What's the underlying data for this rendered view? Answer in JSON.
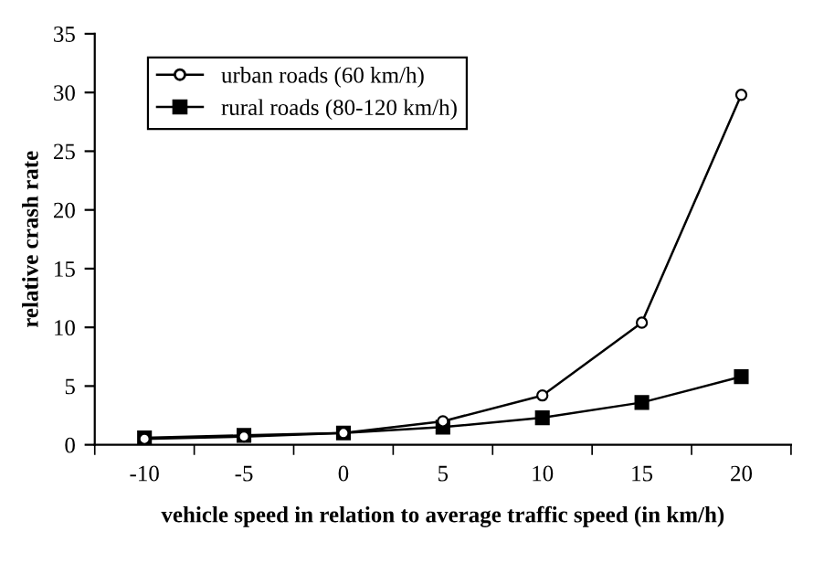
{
  "chart_data": {
    "type": "line",
    "xlabel": "vehicle speed in relation to average traffic speed (in km/h)",
    "ylabel": "relative crash rate",
    "categories": [
      "-10",
      "-5",
      "0",
      "5",
      "10",
      "15",
      "20"
    ],
    "series": [
      {
        "name": "urban roads (60 km/h)",
        "color": "#000000",
        "marker": "circle",
        "values": [
          0.5,
          0.7,
          1.0,
          2.0,
          4.2,
          10.4,
          29.8
        ]
      },
      {
        "name": "rural roads (80-120 km/h)",
        "color": "#000000",
        "marker": "square",
        "values": [
          0.6,
          0.8,
          1.0,
          1.5,
          2.3,
          3.6,
          5.8
        ]
      }
    ],
    "ylim": [
      0,
      35
    ],
    "yticks": [
      0,
      5,
      10,
      15,
      20,
      25,
      30,
      35
    ],
    "grid": false,
    "legend": "top left",
    "line_style": "solid"
  }
}
